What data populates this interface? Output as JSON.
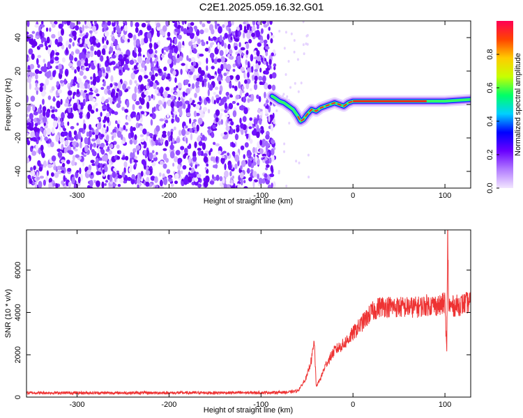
{
  "title": "C2E1.2025.059.16.32.G01",
  "chart_data": [
    {
      "type": "heatmap",
      "xlabel": "Height of straight line (km)",
      "ylabel": "Frequency (Hz)",
      "xlim": [
        -355,
        128
      ],
      "ylim": [
        -50,
        50
      ],
      "x_ticks": [
        -300,
        -200,
        -100,
        0,
        100
      ],
      "y_ticks": [
        -40,
        -20,
        0,
        20,
        40
      ],
      "noise_region": {
        "x": [
          -355,
          -85
        ],
        "y": [
          -50,
          50
        ]
      },
      "ridge": {
        "x": [
          -88,
          -85,
          -80,
          -75,
          -70,
          -65,
          -60,
          -57,
          -54,
          -50,
          -45,
          -40,
          -35,
          -30,
          -25,
          -20,
          -15,
          -10,
          -5,
          0,
          20,
          50,
          80,
          100,
          128
        ],
        "y": [
          5,
          4,
          2,
          1,
          -1,
          -3,
          -7,
          -10,
          -9,
          -6,
          -3,
          -4,
          -2,
          -1,
          0,
          1,
          0,
          -1,
          1,
          2,
          2,
          2,
          2,
          2,
          3
        ]
      },
      "colorbar": {
        "label": "Normalized spectral amplitude",
        "range": [
          0,
          1
        ],
        "ticks": [
          "0.0",
          "0.2",
          "0.4",
          "0.6",
          "0.8"
        ],
        "colors": [
          "#f2e6ff",
          "#b27cff",
          "#6a00ff",
          "#0000ff",
          "#00d0ff",
          "#00ff66",
          "#c8ff00",
          "#ffcc00",
          "#ff4400",
          "#ff0055"
        ]
      }
    },
    {
      "type": "line",
      "xlabel": "Height of straight line (km)",
      "ylabel": "SNR (10 * v/v)",
      "xlim": [
        -355,
        128
      ],
      "ylim": [
        0,
        7900
      ],
      "x_ticks": [
        -300,
        -200,
        -100,
        0,
        100
      ],
      "y_ticks": [
        0,
        2000,
        4000,
        6000
      ],
      "color": "#ee3333",
      "x": [
        -355,
        -300,
        -200,
        -100,
        -70,
        -60,
        -55,
        -50,
        -45,
        -42,
        -40,
        -35,
        -30,
        -20,
        -10,
        0,
        10,
        20,
        30,
        50,
        70,
        80,
        90,
        95,
        100,
        102,
        103,
        104,
        105,
        110,
        120,
        128
      ],
      "y": [
        200,
        200,
        200,
        210,
        230,
        300,
        600,
        1000,
        1800,
        2600,
        500,
        900,
        1500,
        2200,
        2500,
        3000,
        3500,
        4000,
        4300,
        4250,
        4250,
        4350,
        4350,
        4300,
        4500,
        2000,
        7800,
        4400,
        4300,
        4300,
        4400,
        4500
      ]
    }
  ]
}
